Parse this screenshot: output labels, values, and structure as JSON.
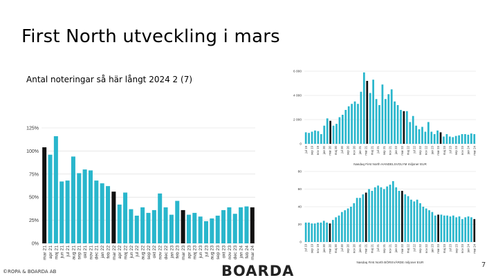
{
  "slide": {
    "title": "First North utveckling i mars",
    "subtitle": "Antal noteringar så här långt 2024 2 (7)",
    "footer": "©ROPA & BOARDA AB",
    "logo_text": "BOARDA",
    "page_number": "7"
  },
  "colors": {
    "bar": "#29B6CC",
    "highlight": "#111111",
    "grid": "#d9d9d9"
  },
  "chart_data": [
    {
      "type": "bar",
      "title": "",
      "ylim": [
        0,
        1.25
      ],
      "yticks": [
        0,
        0.25,
        0.5,
        0.75,
        1.0,
        1.25
      ],
      "ytick_labels": [
        "0%",
        "25%",
        "50%",
        "75%",
        "100%",
        "125%"
      ],
      "grid": true,
      "categories": [
        "mar 21",
        "apr 21",
        "maj 21",
        "jun 21",
        "jul 21",
        "aug 21",
        "sep 21",
        "okt 21",
        "nov 21",
        "dec 21",
        "jan 22",
        "feb 22",
        "mar 22",
        "apr 22",
        "maj 22",
        "jun 22",
        "jul 22",
        "aug 22",
        "sep 22",
        "okt 22",
        "nov 22",
        "dec 22",
        "jan 23",
        "feb 23",
        "mar 23",
        "apr 23",
        "maj 23",
        "jun 23",
        "jul 23",
        "aug 23",
        "sep 23",
        "okt 23",
        "nov 23",
        "dec 23",
        "jan 24",
        "feb 24",
        "mar 24"
      ],
      "values": [
        1.04,
        0.96,
        1.16,
        0.67,
        0.68,
        0.94,
        0.76,
        0.8,
        0.79,
        0.68,
        0.65,
        0.62,
        0.56,
        0.42,
        0.55,
        0.37,
        0.3,
        0.39,
        0.33,
        0.36,
        0.54,
        0.39,
        0.31,
        0.46,
        0.36,
        0.31,
        0.33,
        0.29,
        0.24,
        0.27,
        0.3,
        0.36,
        0.39,
        0.32,
        0.39,
        0.4,
        0.39
      ],
      "highlight_categories": [
        "mar 21",
        "mar 22",
        "mar 23",
        "mar 24"
      ]
    },
    {
      "type": "bar",
      "title": "",
      "xlabel": "Nasdaq First North HANDELSVOLYM miljoner EUR",
      "ylim": [
        0,
        6000
      ],
      "yticks": [
        0,
        2000,
        4000,
        6000
      ],
      "ytick_labels": [
        "0",
        "2 000",
        "4 000",
        "6 000"
      ],
      "grid": true,
      "tick_labels": [
        "jul 19",
        "sep 19",
        "nov 19",
        "jan 20",
        "mar 20",
        "maj 20",
        "jul 20",
        "sep 20",
        "nov 20",
        "jan 21",
        "mar 21",
        "maj 21",
        "jul 21",
        "sep 21",
        "nov 21",
        "jan 22",
        "mar 22",
        "maj 22",
        "jul 22",
        "sep 22",
        "nov 22",
        "jan 23",
        "mar 23",
        "maj 23",
        "jul 23",
        "sep 23",
        "nov 23",
        "jan 24",
        "mar 24"
      ],
      "values": [
        950,
        900,
        1000,
        1100,
        1050,
        800,
        1500,
        2100,
        1900,
        1500,
        1650,
        2200,
        2400,
        2800,
        3100,
        3300,
        3500,
        3300,
        4300,
        5900,
        5200,
        4200,
        5300,
        3700,
        3200,
        4900,
        3700,
        4100,
        4500,
        3500,
        3200,
        2800,
        2700,
        2700,
        1800,
        2300,
        1500,
        1200,
        1400,
        1000,
        1800,
        1000,
        800,
        1100,
        950,
        600,
        800,
        600,
        550,
        650,
        700,
        800,
        800,
        750,
        850,
        800
      ],
      "highlight_indices": [
        8,
        20,
        32,
        44,
        56
      ]
    },
    {
      "type": "bar",
      "title": "",
      "xlabel": "Nasdaq First North BÖRSVÄRDE miljoner EUR",
      "ylim": [
        0,
        80
      ],
      "yticks": [
        0,
        20,
        40,
        60,
        80
      ],
      "ytick_labels": [
        "0",
        "20",
        "40",
        "60",
        "80"
      ],
      "grid": true,
      "tick_labels": [
        "jul 19",
        "sep 19",
        "nov 19",
        "jan 20",
        "mar 20",
        "maj 20",
        "jul 20",
        "sep 20",
        "nov 20",
        "jan 21",
        "mar 21",
        "maj 21",
        "jul 21",
        "sep 21",
        "nov 21",
        "jan 22",
        "mar 22",
        "maj 22",
        "jul 22",
        "sep 22",
        "nov 22",
        "jan 23",
        "mar 23",
        "maj 23",
        "jul 23",
        "sep 23",
        "nov 23",
        "jan 24",
        "mar 24"
      ],
      "values": [
        22,
        22,
        21,
        21,
        22,
        22,
        24,
        22,
        21,
        25,
        28,
        30,
        34,
        36,
        38,
        40,
        44,
        50,
        50,
        54,
        56,
        60,
        58,
        62,
        64,
        62,
        60,
        63,
        65,
        69,
        62,
        58,
        58,
        54,
        52,
        48,
        46,
        48,
        44,
        40,
        38,
        36,
        34,
        30,
        31,
        31,
        30,
        30,
        29,
        30,
        28,
        29,
        26,
        28,
        29,
        28,
        26
      ],
      "highlight_indices": [
        8,
        20,
        32,
        44,
        56
      ]
    }
  ]
}
